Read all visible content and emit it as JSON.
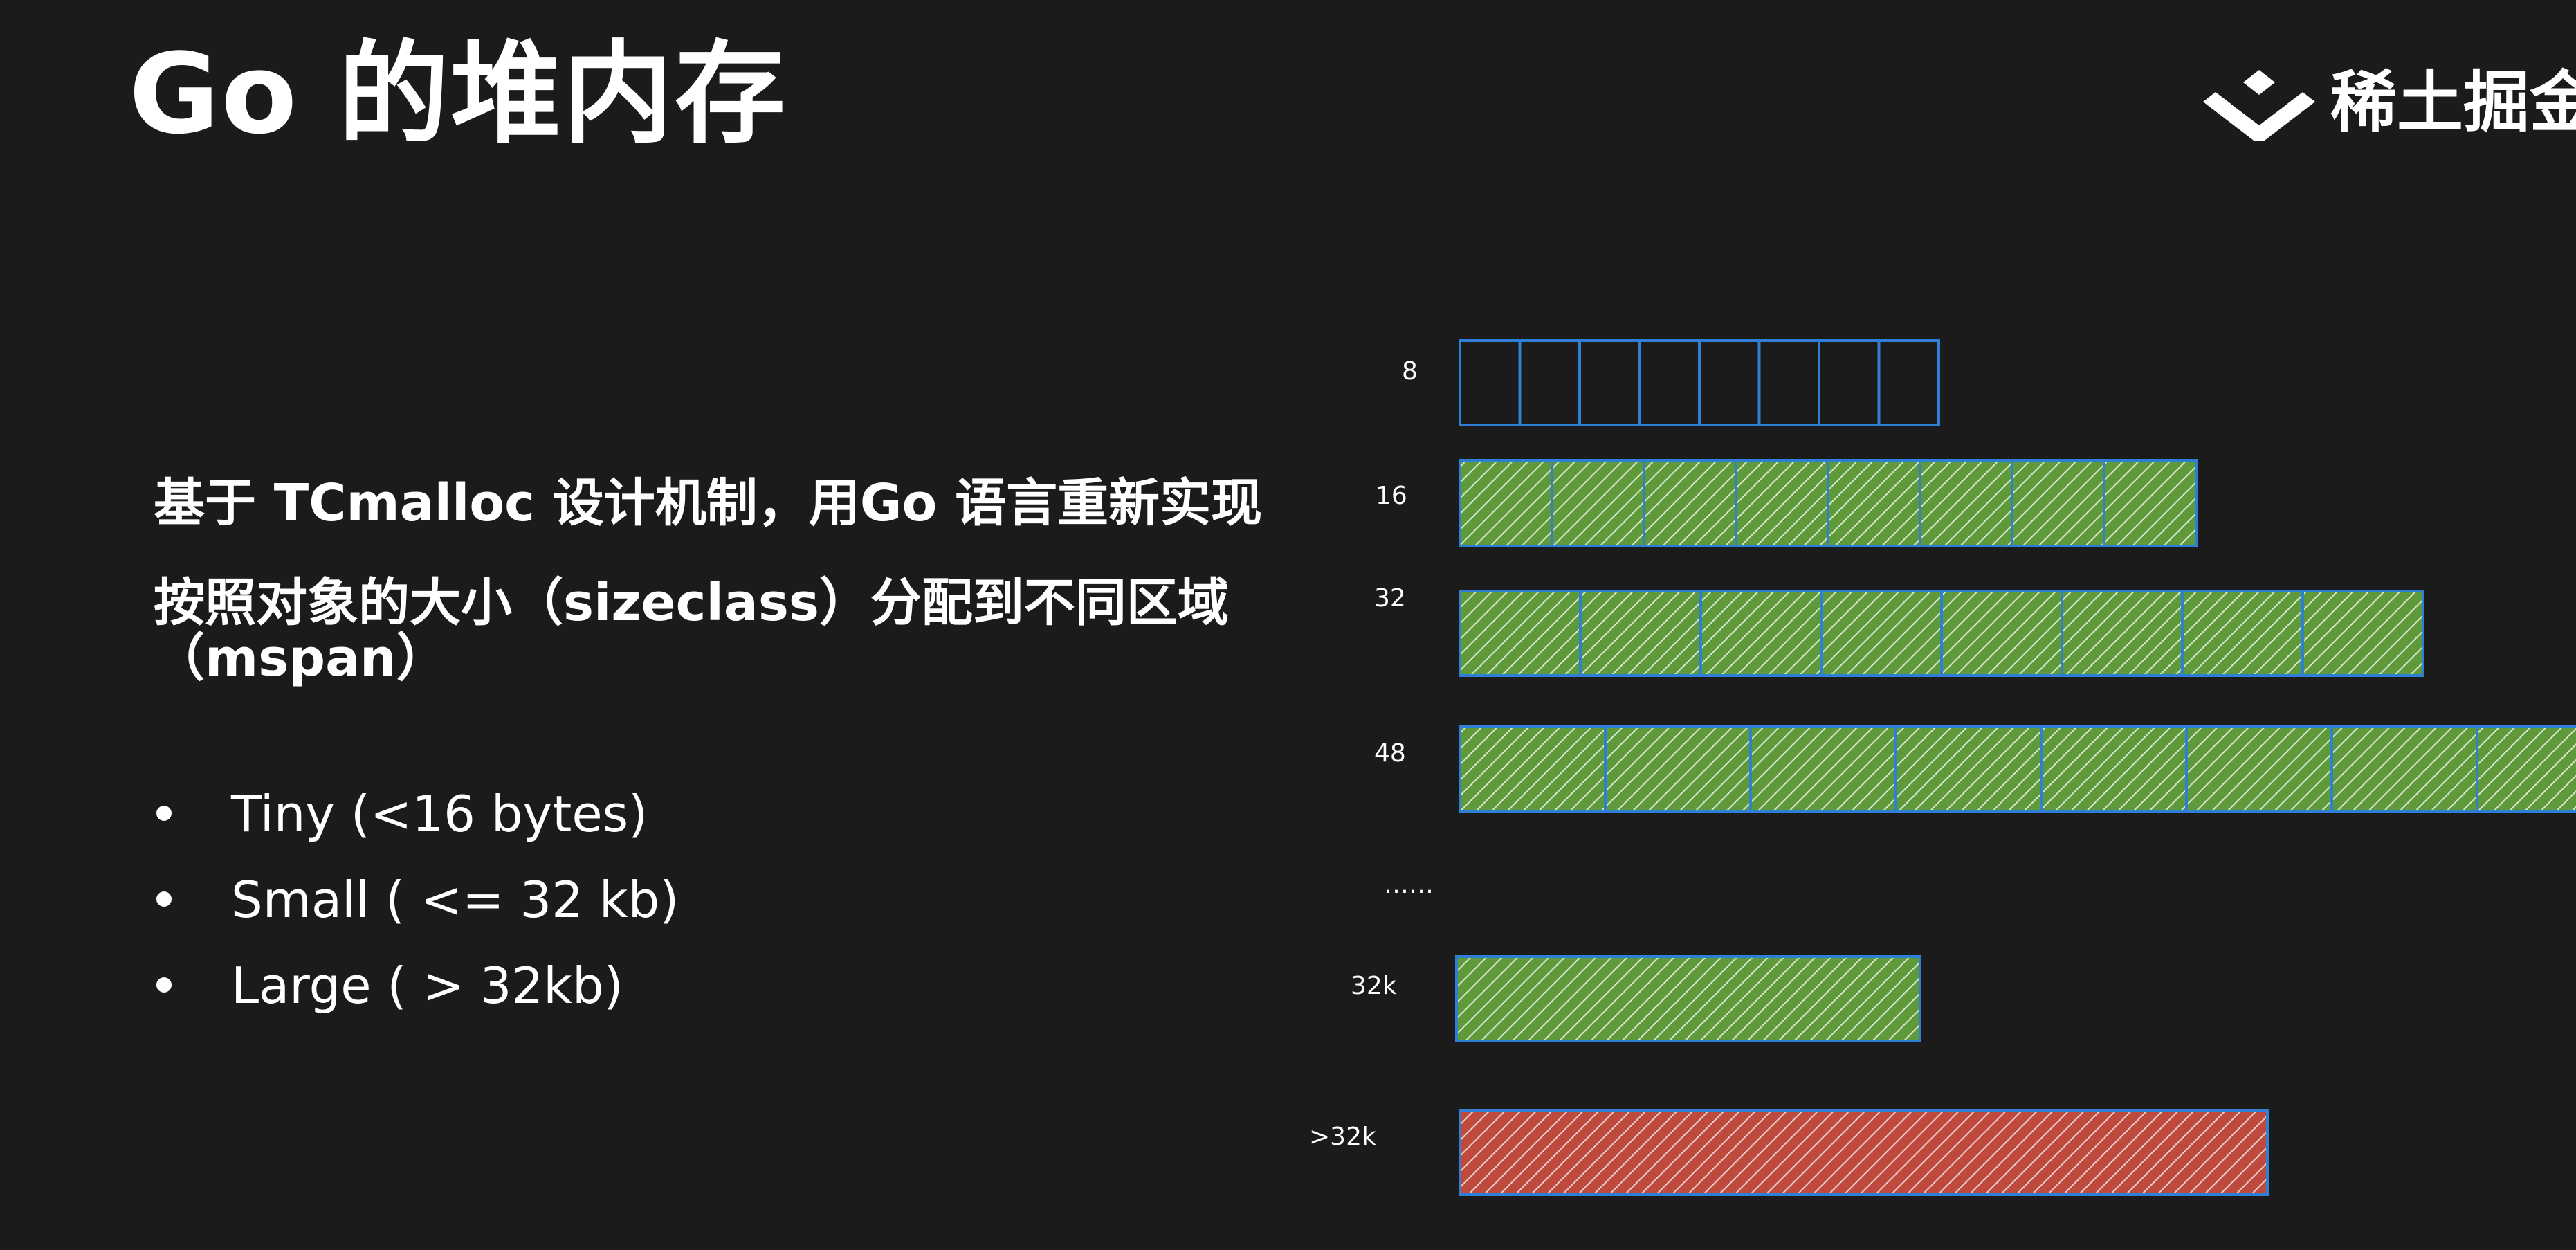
{
  "title": "Go 的堆内存",
  "logo": {
    "text": "稀土掘金",
    "icon": "juejin-logo-icon"
  },
  "description": {
    "lines": [
      "基于 TCmalloc 设计机制，用Go 语言重新实现",
      "按照对象的大小（sizeclass）分配到不同区域",
      "（mspan）"
    ]
  },
  "bullets": [
    "Tiny (<16 bytes)",
    "Small ( <= 32 kb)",
    "Large ( > 32kb)"
  ],
  "diagram": {
    "colors": {
      "border": "#2f7fd6",
      "free": "#1b1b1b",
      "small": "#5f9a3a",
      "large": "#c0493e",
      "hatch": "#d8e7d0"
    },
    "ellipsis": "……",
    "rows": [
      {
        "label": "8",
        "slots": 8,
        "fill": "free"
      },
      {
        "label": "16",
        "slots": 8,
        "fill": "small"
      },
      {
        "label": "32",
        "slots": 8,
        "fill": "small"
      },
      {
        "label": "48",
        "slots": 8,
        "fill": "small"
      },
      {
        "label": "32k",
        "slots": 1,
        "fill": "small"
      },
      {
        "label": ">32k",
        "slots": 1,
        "fill": "large"
      }
    ]
  }
}
